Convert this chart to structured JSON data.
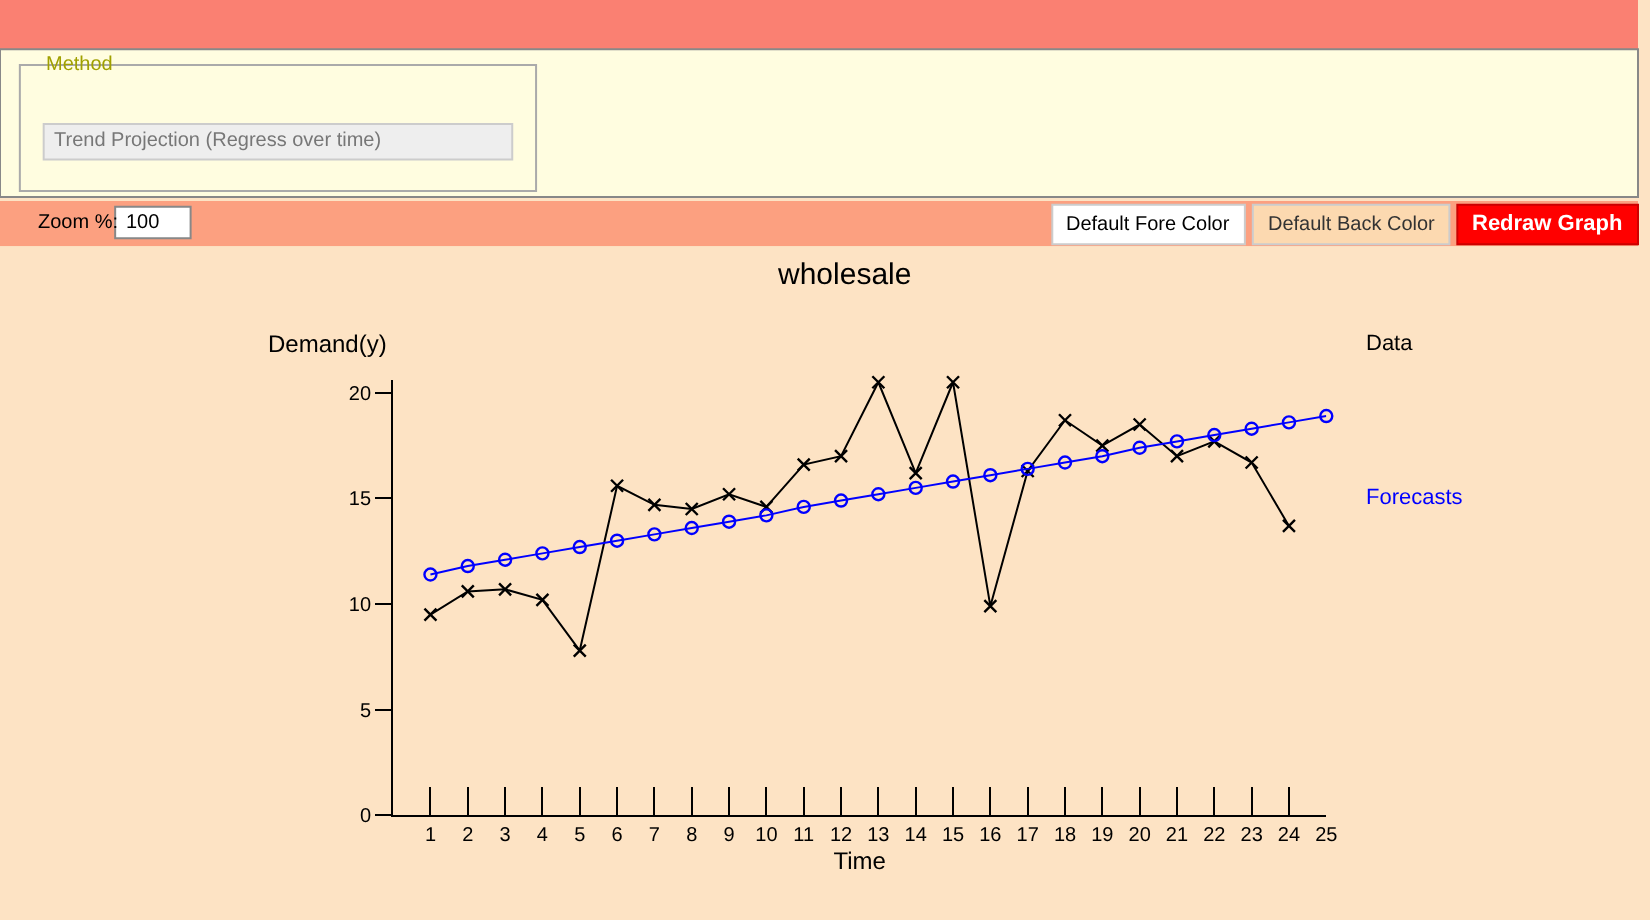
{
  "chart_data": {
    "type": "line",
    "title": "wholesale",
    "xlabel": "Time",
    "ylabel": "Demand(y)",
    "x": [
      1,
      2,
      3,
      4,
      5,
      6,
      7,
      8,
      9,
      10,
      11,
      12,
      13,
      14,
      15,
      16,
      17,
      18,
      19,
      20,
      21,
      22,
      23,
      24,
      25
    ],
    "series": [
      {
        "name": "Data",
        "color": "#000000",
        "marker": "cross",
        "values": [
          9.5,
          10.6,
          10.7,
          10.2,
          7.8,
          15.6,
          14.7,
          14.5,
          15.2,
          14.6,
          16.6,
          17.0,
          20.5,
          16.2,
          20.5,
          9.9,
          16.3,
          18.7,
          17.5,
          18.5,
          17.0,
          17.7,
          16.7,
          13.7,
          null
        ]
      },
      {
        "name": "Forecasts",
        "color": "#0000ff",
        "marker": "circle",
        "values": [
          11.4,
          11.8,
          12.1,
          12.4,
          12.7,
          13.0,
          13.3,
          13.6,
          13.9,
          14.2,
          14.6,
          14.9,
          15.2,
          15.5,
          15.8,
          16.1,
          16.4,
          16.7,
          17.0,
          17.4,
          17.7,
          18.0,
          18.3,
          18.6,
          18.9
        ]
      }
    ],
    "xlim": [
      0,
      25
    ],
    "xticks": [
      1,
      2,
      3,
      4,
      5,
      6,
      7,
      8,
      9,
      10,
      11,
      12,
      13,
      14,
      15,
      16,
      17,
      18,
      19,
      20,
      21,
      22,
      23,
      24,
      25
    ],
    "ylim": [
      0,
      20.6
    ],
    "yticks": [
      0,
      5,
      10,
      15,
      20
    ],
    "grid": false,
    "legend": false,
    "line_style": "solid",
    "annotations": [
      "Method",
      "Trend Projection (Regress over time)",
      "Zoom %:",
      "100",
      "Default Fore Color",
      "Default Back Color",
      "Redraw Graph"
    ]
  }
}
